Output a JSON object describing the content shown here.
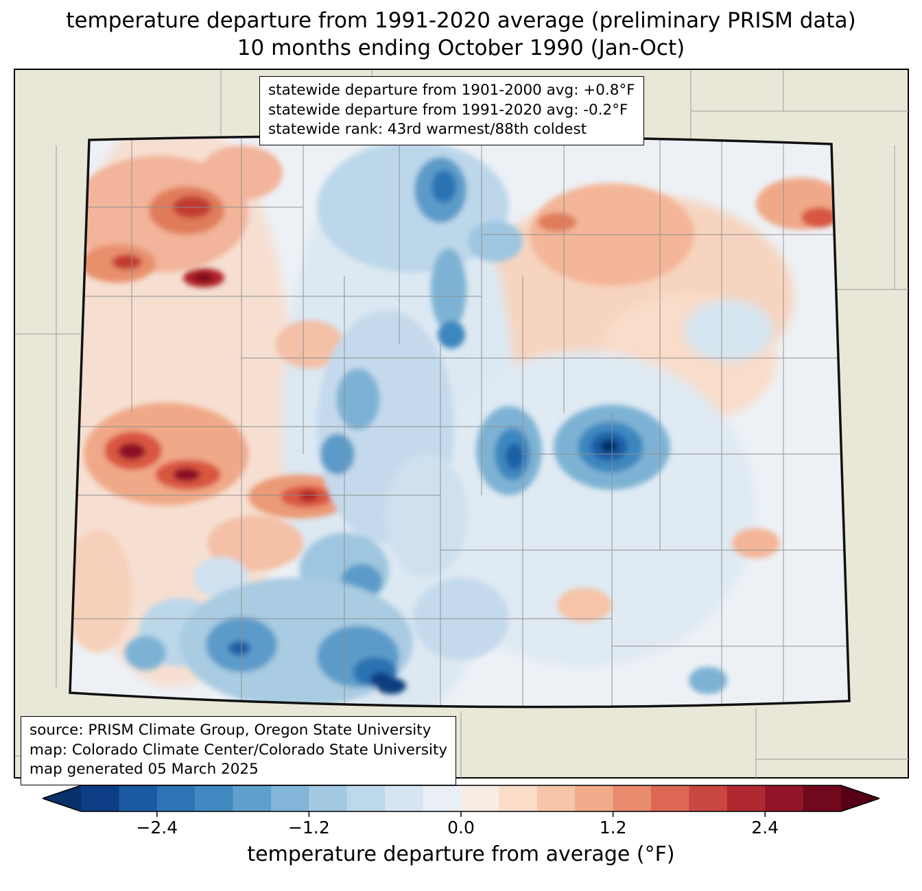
{
  "title": {
    "line1": "temperature departure from 1991-2020 average (preliminary PRISM data)",
    "line2": "10 months ending October 1990 (Jan-Oct)"
  },
  "stats_box": {
    "line1": "statewide departure from 1901-2000 avg: +0.8°F",
    "line2": "statewide departure from 1991-2020 avg: -0.2°F",
    "line3": "statewide rank: 43rd warmest/88th coldest"
  },
  "source_box": {
    "line1": "source: PRISM Climate Group, Oregon State University",
    "line2": "map: Colorado Climate Center/Colorado State University",
    "line3": "map generated 05 March 2025"
  },
  "colorbar": {
    "label": "temperature departure from average (°F)",
    "ticks": [
      "−2.4",
      "−1.2",
      "0.0",
      "1.2",
      "2.4"
    ],
    "value_range": [
      -3.0,
      3.0
    ],
    "colors": [
      "#0d3d84",
      "#1a5ba4",
      "#2d74b4",
      "#4189c1",
      "#5f9fcc",
      "#82b5d8",
      "#a2c8e2",
      "#bed8eb",
      "#d6e5f1",
      "#e9eff5",
      "#f9ece3",
      "#fadcc8",
      "#f7c6a9",
      "#f2aa8a",
      "#e98b6d",
      "#dc6853",
      "#c94740",
      "#b02931",
      "#921527",
      "#70081e"
    ],
    "arrow_colors": {
      "left": "#083069",
      "right": "#560016"
    }
  },
  "map": {
    "region": "Colorado",
    "land_color": "#e9e8d8",
    "state_border_color": "#000000",
    "county_line_color": "#8f8f8f"
  }
}
